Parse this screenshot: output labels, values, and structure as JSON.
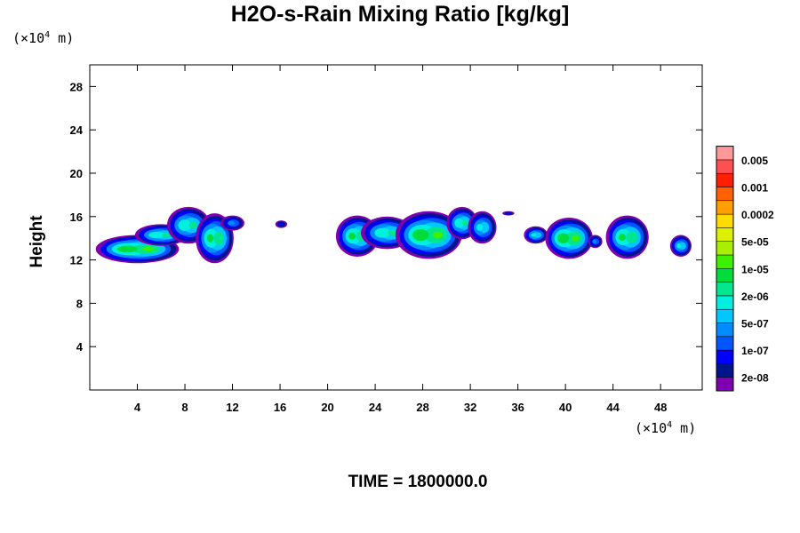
{
  "chart_data": {
    "type": "contour",
    "title": "H2O-s-Rain Mixing Ratio [kg/kg]",
    "ylabel": "Height",
    "x_unit": "10^4 m",
    "y_unit": "10^4 m",
    "xlim": [
      0,
      51.5
    ],
    "ylim": [
      0,
      30
    ],
    "x_ticks": [
      4,
      8,
      12,
      16,
      20,
      24,
      28,
      32,
      36,
      40,
      44,
      48
    ],
    "y_ticks": [
      4,
      8,
      12,
      16,
      20,
      24,
      28
    ],
    "time_label": "TIME = 1800000.0",
    "colorbar": {
      "colors": [
        "#7f00b0",
        "#00148c",
        "#0000ff",
        "#0055ff",
        "#008cff",
        "#00c8ff",
        "#00f0e0",
        "#00e690",
        "#00dc3c",
        "#3cf000",
        "#a8f000",
        "#dcf000",
        "#ffdc00",
        "#ffa000",
        "#ff6000",
        "#ff1e00",
        "#ff5050",
        "#ff9999"
      ],
      "labels": [
        "2e-08",
        "1e-07",
        "5e-07",
        "2e-06",
        "1e-05",
        "5e-05",
        "0.0002",
        "0.001",
        "0.005"
      ]
    },
    "cells": [
      {
        "x": 4.0,
        "y": 13.0,
        "rx": 3.5,
        "ry": 1.3,
        "peak": 9
      },
      {
        "x": 6.0,
        "y": 14.3,
        "rx": 2.2,
        "ry": 1.0,
        "peak": 7
      },
      {
        "x": 8.3,
        "y": 15.2,
        "rx": 1.8,
        "ry": 1.7,
        "peak": 7
      },
      {
        "x": 10.5,
        "y": 14.0,
        "rx": 1.6,
        "ry": 2.3,
        "peak": 8
      },
      {
        "x": 12.0,
        "y": 15.4,
        "rx": 1.0,
        "ry": 0.7,
        "peak": 4
      },
      {
        "x": 16.1,
        "y": 15.3,
        "rx": 0.5,
        "ry": 0.35,
        "peak": 2
      },
      {
        "x": 22.5,
        "y": 14.2,
        "rx": 1.8,
        "ry": 1.9,
        "peak": 8
      },
      {
        "x": 25.0,
        "y": 14.5,
        "rx": 2.2,
        "ry": 1.5,
        "peak": 7
      },
      {
        "x": 28.5,
        "y": 14.3,
        "rx": 2.8,
        "ry": 2.2,
        "peak": 9
      },
      {
        "x": 31.3,
        "y": 15.4,
        "rx": 1.3,
        "ry": 1.5,
        "peak": 7
      },
      {
        "x": 33.0,
        "y": 15.0,
        "rx": 1.2,
        "ry": 1.5,
        "peak": 6
      },
      {
        "x": 35.2,
        "y": 16.3,
        "rx": 0.5,
        "ry": 0.2,
        "peak": 2
      },
      {
        "x": 37.5,
        "y": 14.3,
        "rx": 1.0,
        "ry": 0.8,
        "peak": 6
      },
      {
        "x": 40.3,
        "y": 14.0,
        "rx": 2.0,
        "ry": 1.9,
        "peak": 9
      },
      {
        "x": 42.5,
        "y": 13.7,
        "rx": 0.6,
        "ry": 0.6,
        "peak": 4
      },
      {
        "x": 45.2,
        "y": 14.1,
        "rx": 1.8,
        "ry": 2.0,
        "peak": 8
      },
      {
        "x": 49.7,
        "y": 13.3,
        "rx": 0.9,
        "ry": 1.0,
        "peak": 6
      }
    ]
  }
}
